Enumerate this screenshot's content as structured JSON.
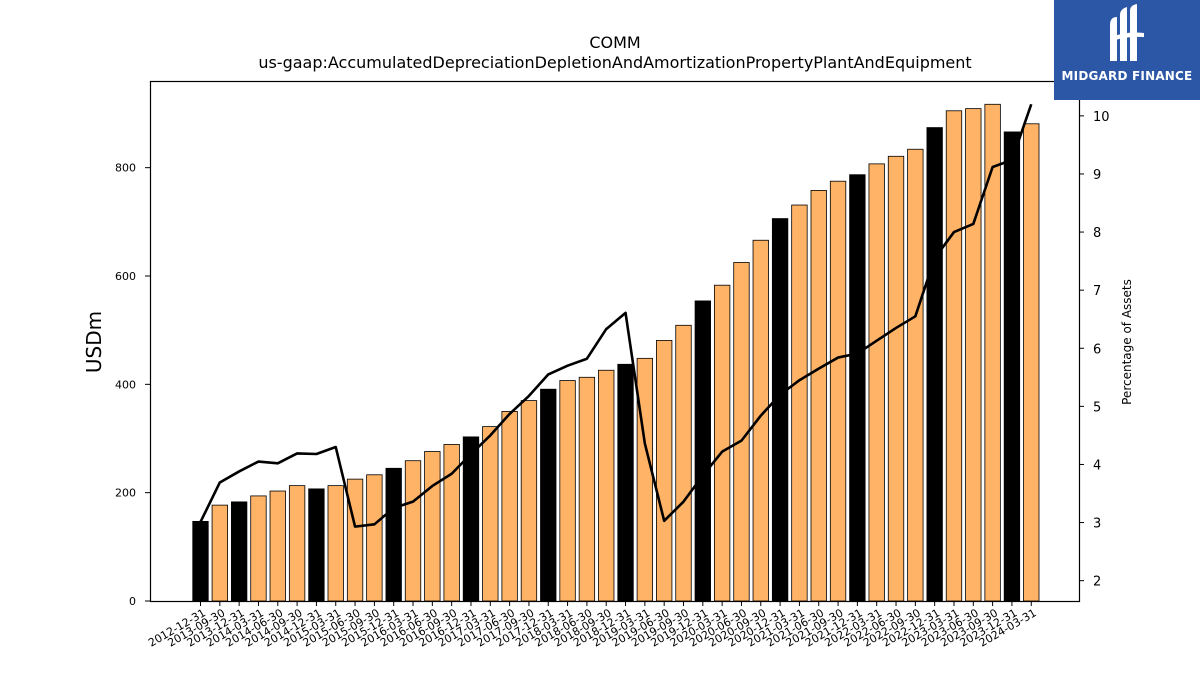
{
  "chart_data": {
    "type": "bar",
    "title": "COMM",
    "subtitle": "us-gaap:AccumulatedDepreciationDepletionAndAmortizationPropertyPlantAndEquipment",
    "ylabel": "USDm",
    "ylabel_right": "Percentage of Assets",
    "ylim": [
      0,
      960
    ],
    "ylim_right": [
      1.65,
      10.6
    ],
    "yticks": [
      0,
      200,
      400,
      600,
      800
    ],
    "yticks_right": [
      2,
      3,
      4,
      5,
      6,
      7,
      8,
      9,
      10
    ],
    "grid": false,
    "colors": {
      "annual": "#000000",
      "quarterly": "#ffb366",
      "line": "#000000"
    },
    "categories": [
      "2012-12-31",
      "2013-09-30",
      "2013-12-31",
      "2014-03-31",
      "2014-06-30",
      "2014-09-30",
      "2014-12-31",
      "2015-03-31",
      "2015-06-30",
      "2015-09-30",
      "2015-12-31",
      "2016-03-31",
      "2016-06-30",
      "2016-09-30",
      "2016-12-31",
      "2017-03-31",
      "2017-06-30",
      "2017-09-30",
      "2017-12-31",
      "2018-03-31",
      "2018-06-30",
      "2018-09-30",
      "2018-12-31",
      "2019-03-31",
      "2019-06-30",
      "2019-09-30",
      "2019-12-31",
      "2020-03-31",
      "2020-06-30",
      "2020-09-30",
      "2020-12-31",
      "2021-03-31",
      "2021-06-30",
      "2021-09-30",
      "2021-12-31",
      "2022-03-31",
      "2022-06-30",
      "2022-09-30",
      "2022-12-31",
      "2023-03-31",
      "2023-06-30",
      "2023-09-30",
      "2023-12-31",
      "2024-03-31"
    ],
    "series": [
      {
        "values": [
          147,
          177,
          183,
          194,
          203,
          213,
          207,
          213,
          225,
          233,
          245,
          259,
          276,
          289,
          303,
          322,
          350,
          370,
          391,
          407,
          413,
          426,
          437,
          448,
          481,
          509,
          554,
          583,
          625,
          666,
          706,
          731,
          758,
          775,
          787,
          807,
          821,
          834,
          874,
          905,
          909,
          917,
          866,
          881
        ]
      },
      {
        "values": [
          3.01,
          3.69,
          3.88,
          4.05,
          4.02,
          4.19,
          4.18,
          4.3,
          2.93,
          2.97,
          3.25,
          3.36,
          3.63,
          3.84,
          4.18,
          4.5,
          4.87,
          5.18,
          5.55,
          5.7,
          5.82,
          6.33,
          6.61,
          4.36,
          3.03,
          3.36,
          3.81,
          4.22,
          4.41,
          4.84,
          5.2,
          5.45,
          5.65,
          5.84,
          5.91,
          6.13,
          6.35,
          6.55,
          7.55,
          8.0,
          8.14,
          9.12,
          9.24,
          10.2
        ]
      }
    ],
    "annual_flags": [
      true,
      false,
      true,
      false,
      false,
      false,
      true,
      false,
      false,
      false,
      true,
      false,
      false,
      false,
      true,
      false,
      false,
      false,
      true,
      false,
      false,
      false,
      true,
      false,
      false,
      false,
      true,
      false,
      false,
      false,
      true,
      false,
      false,
      false,
      true,
      false,
      false,
      false,
      true,
      false,
      false,
      false,
      true,
      false
    ]
  },
  "logo": {
    "text": "MIDGARD FINANCE"
  }
}
